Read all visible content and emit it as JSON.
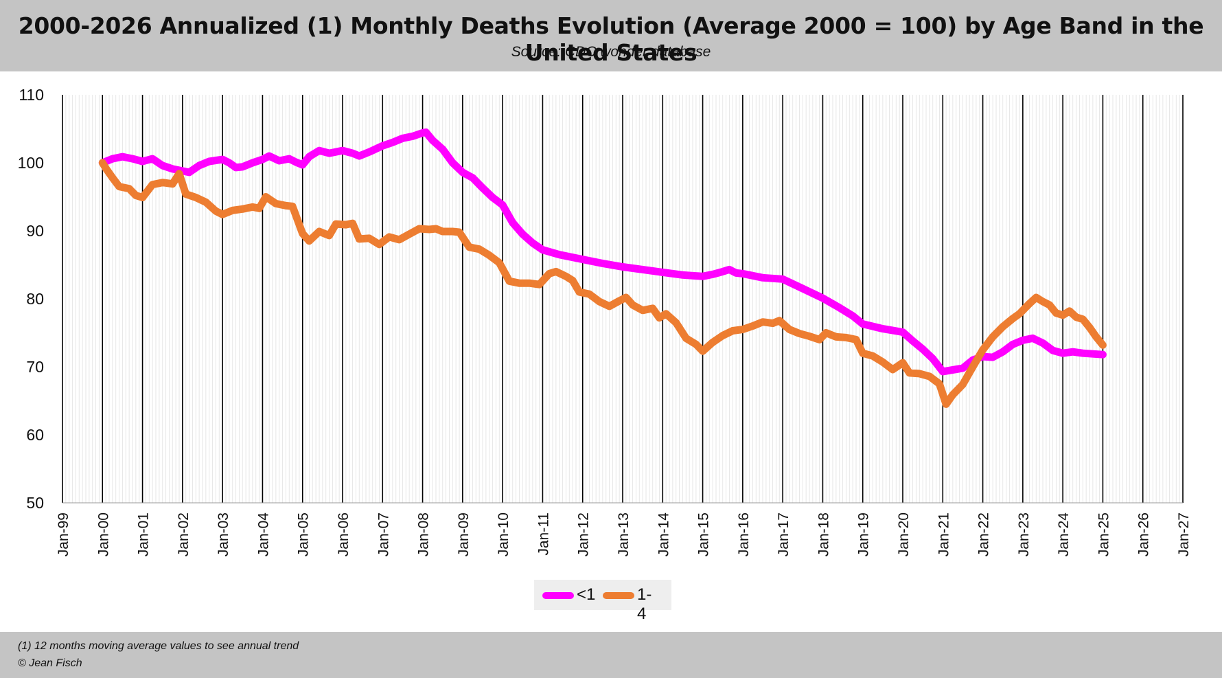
{
  "header": {
    "title": "2000-2026 Annualized (1) Monthly Deaths Evolution (Average 2000 = 100) by Age Band in the United States",
    "subtitle": "Source: CDC wonder database"
  },
  "footer": {
    "note": "(1) 12 months moving average values to see annual trend",
    "copyright": "© Jean Fisch"
  },
  "chart_data": {
    "type": "line",
    "title": "2000-2026 Annualized (1) Monthly Deaths Evolution (Average 2000 = 100) by Age Band in the United States",
    "subtitle": "Source: CDC wonder database",
    "xlabel": "",
    "ylabel": "",
    "x_range": [
      "Jan-99",
      "Jan-27"
    ],
    "ylim": [
      50,
      110
    ],
    "y_ticks": [
      50,
      60,
      70,
      80,
      90,
      100,
      110
    ],
    "x_ticks": [
      "Jan-99",
      "Jan-00",
      "Jan-01",
      "Jan-02",
      "Jan-03",
      "Jan-04",
      "Jan-05",
      "Jan-06",
      "Jan-07",
      "Jan-08",
      "Jan-09",
      "Jan-10",
      "Jan-11",
      "Jan-12",
      "Jan-13",
      "Jan-14",
      "Jan-15",
      "Jan-16",
      "Jan-17",
      "Jan-18",
      "Jan-19",
      "Jan-20",
      "Jan-21",
      "Jan-22",
      "Jan-23",
      "Jan-24",
      "Jan-25",
      "Jan-26",
      "Jan-27"
    ],
    "grid": "vertical lines at each January, lighter lines at each month",
    "legend_position": "bottom-center",
    "series": [
      {
        "name": "<1",
        "color": "#ff00ff",
        "points": [
          [
            "Jan-00",
            100.0
          ],
          [
            "Apr-00",
            100.6
          ],
          [
            "Jul-00",
            100.9
          ],
          [
            "Oct-00",
            100.6
          ],
          [
            "Jan-01",
            100.2
          ],
          [
            "Apr-01",
            100.6
          ],
          [
            "Jul-01",
            99.6
          ],
          [
            "Oct-01",
            99.1
          ],
          [
            "Jan-02",
            98.8
          ],
          [
            "Mar-02",
            98.6
          ],
          [
            "Jun-02",
            99.6
          ],
          [
            "Sep-02",
            100.2
          ],
          [
            "Jan-03",
            100.5
          ],
          [
            "Mar-03",
            100.0
          ],
          [
            "May-03",
            99.3
          ],
          [
            "Jul-03",
            99.4
          ],
          [
            "Oct-03",
            100.0
          ],
          [
            "Jan-04",
            100.5
          ],
          [
            "Mar-04",
            101.0
          ],
          [
            "Jun-04",
            100.3
          ],
          [
            "Sep-04",
            100.6
          ],
          [
            "Nov-04",
            100.1
          ],
          [
            "Jan-05",
            99.7
          ],
          [
            "Mar-05",
            100.9
          ],
          [
            "Jun-05",
            101.8
          ],
          [
            "Sep-05",
            101.4
          ],
          [
            "Jan-06",
            101.8
          ],
          [
            "Apr-06",
            101.4
          ],
          [
            "Jun-06",
            101.0
          ],
          [
            "Sep-06",
            101.6
          ],
          [
            "Jan-07",
            102.5
          ],
          [
            "Apr-07",
            103.0
          ],
          [
            "Jul-07",
            103.6
          ],
          [
            "Oct-07",
            103.9
          ],
          [
            "Jan-08",
            104.4
          ],
          [
            "Feb-08",
            104.5
          ],
          [
            "Apr-08",
            103.3
          ],
          [
            "Jul-08",
            102.0
          ],
          [
            "Oct-08",
            100.0
          ],
          [
            "Jan-09",
            98.6
          ],
          [
            "Apr-09",
            97.8
          ],
          [
            "Jul-09",
            96.3
          ],
          [
            "Oct-09",
            94.9
          ],
          [
            "Jan-10",
            93.8
          ],
          [
            "Apr-10",
            91.2
          ],
          [
            "Jul-10",
            89.5
          ],
          [
            "Oct-10",
            88.2
          ],
          [
            "Jan-11",
            87.2
          ],
          [
            "Jun-11",
            86.5
          ],
          [
            "Jan-12",
            85.8
          ],
          [
            "Jul-12",
            85.2
          ],
          [
            "Jan-13",
            84.7
          ],
          [
            "Jul-13",
            84.3
          ],
          [
            "Jan-14",
            83.9
          ],
          [
            "Jul-14",
            83.5
          ],
          [
            "Jan-15",
            83.3
          ],
          [
            "Apr-15",
            83.6
          ],
          [
            "Jul-15",
            84.0
          ],
          [
            "Sep-15",
            84.3
          ],
          [
            "Nov-15",
            83.8
          ],
          [
            "Jan-16",
            83.7
          ],
          [
            "Jul-16",
            83.1
          ],
          [
            "Jan-17",
            82.9
          ],
          [
            "Jul-17",
            81.5
          ],
          [
            "Jan-18",
            80.1
          ],
          [
            "Jun-18",
            78.7
          ],
          [
            "Oct-18",
            77.5
          ],
          [
            "Jan-19",
            76.3
          ],
          [
            "Jul-19",
            75.6
          ],
          [
            "Jan-20",
            75.1
          ],
          [
            "Apr-20",
            73.8
          ],
          [
            "Jul-20",
            72.6
          ],
          [
            "Oct-20",
            71.2
          ],
          [
            "Jan-21",
            69.3
          ],
          [
            "Jul-21",
            69.8
          ],
          [
            "Oct-21",
            71.0
          ],
          [
            "Jan-22",
            71.5
          ],
          [
            "Apr-22",
            71.4
          ],
          [
            "Jul-22",
            72.2
          ],
          [
            "Oct-22",
            73.3
          ],
          [
            "Jan-23",
            73.9
          ],
          [
            "Apr-23",
            74.2
          ],
          [
            "Jul-23",
            73.5
          ],
          [
            "Oct-23",
            72.4
          ],
          [
            "Jan-24",
            72.0
          ],
          [
            "Apr-24",
            72.2
          ],
          [
            "Jul-24",
            72.0
          ],
          [
            "Oct-24",
            71.9
          ],
          [
            "Jan-25",
            71.8
          ]
        ]
      },
      {
        "name": "1-4",
        "color": "#ed7d31",
        "points": [
          [
            "Jan-00",
            100.0
          ],
          [
            "Feb-00",
            99.2
          ],
          [
            "Apr-00",
            97.8
          ],
          [
            "Jun-00",
            96.5
          ],
          [
            "Sep-00",
            96.2
          ],
          [
            "Nov-00",
            95.2
          ],
          [
            "Jan-01",
            94.9
          ],
          [
            "Apr-01",
            96.8
          ],
          [
            "Jul-01",
            97.1
          ],
          [
            "Oct-01",
            96.9
          ],
          [
            "Dec-01",
            98.4
          ],
          [
            "Feb-02",
            95.4
          ],
          [
            "May-02",
            94.9
          ],
          [
            "Aug-02",
            94.2
          ],
          [
            "Nov-02",
            92.9
          ],
          [
            "Jan-03",
            92.4
          ],
          [
            "Apr-03",
            93.0
          ],
          [
            "Jul-03",
            93.2
          ],
          [
            "Oct-03",
            93.5
          ],
          [
            "Dec-03",
            93.3
          ],
          [
            "Feb-04",
            95.0
          ],
          [
            "May-04",
            94.0
          ],
          [
            "Aug-04",
            93.7
          ],
          [
            "Oct-04",
            93.6
          ],
          [
            "Jan-05",
            89.6
          ],
          [
            "Mar-05",
            88.5
          ],
          [
            "Jun-05",
            89.9
          ],
          [
            "Sep-05",
            89.3
          ],
          [
            "Nov-05",
            91.0
          ],
          [
            "Feb-06",
            90.9
          ],
          [
            "Apr-06",
            91.1
          ],
          [
            "Jun-06",
            88.8
          ],
          [
            "Sep-06",
            88.9
          ],
          [
            "Dec-06",
            88.0
          ],
          [
            "Mar-07",
            89.1
          ],
          [
            "Jun-07",
            88.7
          ],
          [
            "Sep-07",
            89.5
          ],
          [
            "Dec-07",
            90.3
          ],
          [
            "Mar-08",
            90.2
          ],
          [
            "May-08",
            90.3
          ],
          [
            "Jul-08",
            89.9
          ],
          [
            "Oct-08",
            89.9
          ],
          [
            "Dec-08",
            89.8
          ],
          [
            "Mar-09",
            87.6
          ],
          [
            "Jun-09",
            87.3
          ],
          [
            "Sep-09",
            86.4
          ],
          [
            "Dec-09",
            85.3
          ],
          [
            "Mar-10",
            82.6
          ],
          [
            "Jun-10",
            82.3
          ],
          [
            "Sep-10",
            82.3
          ],
          [
            "Dec-10",
            82.1
          ],
          [
            "Mar-11",
            83.7
          ],
          [
            "May-11",
            84.0
          ],
          [
            "Aug-11",
            83.3
          ],
          [
            "Oct-11",
            82.7
          ],
          [
            "Dec-11",
            81.0
          ],
          [
            "Mar-12",
            80.7
          ],
          [
            "Jun-12",
            79.6
          ],
          [
            "Sep-12",
            78.9
          ],
          [
            "Dec-12",
            79.7
          ],
          [
            "Feb-13",
            80.2
          ],
          [
            "Apr-13",
            79.1
          ],
          [
            "Jul-13",
            78.3
          ],
          [
            "Oct-13",
            78.6
          ],
          [
            "Dec-13",
            77.2
          ],
          [
            "Feb-14",
            77.8
          ],
          [
            "May-14",
            76.5
          ],
          [
            "Aug-14",
            74.2
          ],
          [
            "Nov-14",
            73.3
          ],
          [
            "Jan-15",
            72.3
          ],
          [
            "Apr-15",
            73.6
          ],
          [
            "Jul-15",
            74.6
          ],
          [
            "Oct-15",
            75.3
          ],
          [
            "Jan-16",
            75.5
          ],
          [
            "Apr-16",
            76.0
          ],
          [
            "Jul-16",
            76.6
          ],
          [
            "Oct-16",
            76.4
          ],
          [
            "Dec-16",
            76.8
          ],
          [
            "Mar-17",
            75.5
          ],
          [
            "Jun-17",
            74.9
          ],
          [
            "Sep-17",
            74.5
          ],
          [
            "Dec-17",
            74.0
          ],
          [
            "Feb-18",
            75.0
          ],
          [
            "May-18",
            74.4
          ],
          [
            "Aug-18",
            74.3
          ],
          [
            "Nov-18",
            74.0
          ],
          [
            "Jan-19",
            72.0
          ],
          [
            "Apr-19",
            71.6
          ],
          [
            "Jul-19",
            70.7
          ],
          [
            "Oct-19",
            69.6
          ],
          [
            "Jan-20",
            70.6
          ],
          [
            "Mar-20",
            69.1
          ],
          [
            "Jun-20",
            69.0
          ],
          [
            "Sep-20",
            68.6
          ],
          [
            "Dec-20",
            67.5
          ],
          [
            "Feb-21",
            64.5
          ],
          [
            "Apr-21",
            65.9
          ],
          [
            "Jul-21",
            67.4
          ],
          [
            "Oct-21",
            70.0
          ],
          [
            "Jan-22",
            72.5
          ],
          [
            "Apr-22",
            74.4
          ],
          [
            "Jul-22",
            75.9
          ],
          [
            "Oct-22",
            77.1
          ],
          [
            "Dec-22",
            77.8
          ],
          [
            "Mar-23",
            79.3
          ],
          [
            "May-23",
            80.2
          ],
          [
            "Jul-23",
            79.6
          ],
          [
            "Sep-23",
            79.1
          ],
          [
            "Nov-23",
            77.9
          ],
          [
            "Jan-24",
            77.6
          ],
          [
            "Mar-24",
            78.2
          ],
          [
            "May-24",
            77.3
          ],
          [
            "Jul-24",
            77.0
          ],
          [
            "Sep-24",
            75.8
          ],
          [
            "Nov-24",
            74.4
          ],
          [
            "Jan-25",
            73.2
          ]
        ]
      }
    ]
  }
}
